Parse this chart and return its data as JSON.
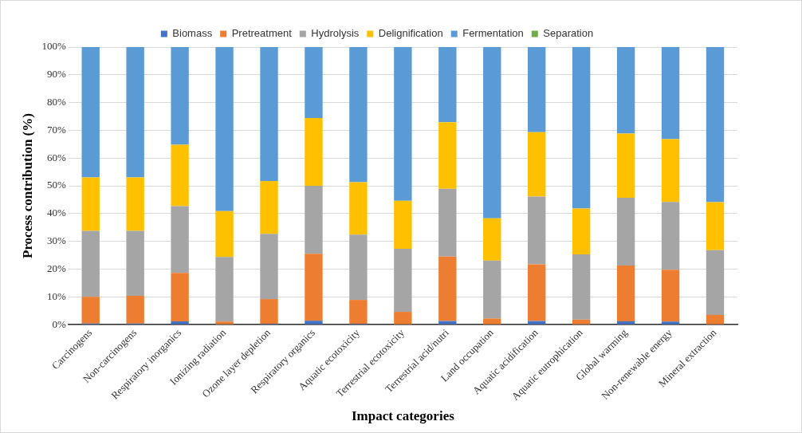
{
  "chart_data": {
    "type": "bar",
    "stacked": true,
    "xlabel": "Impact categories",
    "ylabel": "Process contribution (%)",
    "categories": [
      "Carcinogens",
      "Non-carcinogens",
      "Respiratory inorganics",
      "Ionizing radiation",
      "Ozone layer depletion",
      "Respiratory organics",
      "Aquatic ecotoxicity",
      "Terrestrial ecotoxicity",
      "Terrestrial acid/nutri",
      "Land occupation",
      "Aquatic acidification",
      "Aquatic eutrophication",
      "Global warming",
      "Non-renewable energy",
      "Mineral extraction"
    ],
    "series": [
      {
        "name": "Biomass",
        "color": "#4472c4",
        "values": [
          0.4,
          0.4,
          1.2,
          0,
          0.3,
          1.4,
          0.3,
          0,
          1.3,
          0,
          1.3,
          0,
          1.2,
          1.1,
          0
        ]
      },
      {
        "name": "Pretreatment",
        "color": "#ed7d31",
        "values": [
          9.6,
          10.0,
          17.4,
          1.1,
          8.9,
          24.1,
          8.6,
          4.6,
          23.2,
          2.2,
          20.4,
          1.8,
          20.1,
          18.7,
          3.5
        ]
      },
      {
        "name": "Hydrolysis",
        "color": "#a5a5a5",
        "values": [
          23.8,
          23.4,
          24.1,
          23.3,
          23.5,
          24.5,
          23.5,
          22.7,
          24.4,
          20.9,
          24.4,
          23.5,
          24.4,
          24.4,
          23.3
        ]
      },
      {
        "name": "Delignification",
        "color": "#ffc000",
        "values": [
          19.2,
          19.2,
          22.1,
          16.5,
          19.0,
          24.4,
          18.9,
          17.3,
          24.0,
          15.2,
          23.2,
          16.5,
          23.1,
          22.6,
          17.3
        ]
      },
      {
        "name": "Fermentation",
        "color": "#5b9bd5",
        "values": [
          47.0,
          47.0,
          35.2,
          59.1,
          48.3,
          25.6,
          48.7,
          55.4,
          27.1,
          61.7,
          30.7,
          58.2,
          31.2,
          33.2,
          55.9
        ]
      },
      {
        "name": "Separation",
        "color": "#70ad47",
        "values": [
          0,
          0,
          0,
          0,
          0,
          0,
          0,
          0,
          0,
          0,
          0,
          0,
          0,
          0,
          0
        ]
      }
    ],
    "ylim": [
      0,
      100
    ],
    "yticks": [
      {
        "value": 0,
        "label": "0%"
      },
      {
        "value": 10,
        "label": "10%"
      },
      {
        "value": 20,
        "label": "20%"
      },
      {
        "value": 30,
        "label": "30%"
      },
      {
        "value": 40,
        "label": "40%"
      },
      {
        "value": 50,
        "label": "50%"
      },
      {
        "value": 60,
        "label": "60%"
      },
      {
        "value": 70,
        "label": "70%"
      },
      {
        "value": 80,
        "label": "80%"
      },
      {
        "value": 90,
        "label": "90%"
      },
      {
        "value": 100,
        "label": "100%"
      }
    ],
    "grid": "y",
    "legend": "top"
  }
}
